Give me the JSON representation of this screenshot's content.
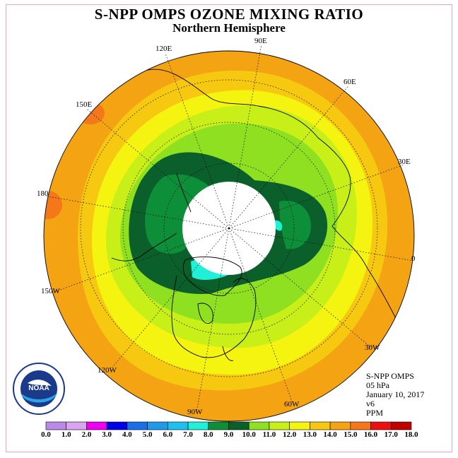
{
  "title": "S-NPP OMPS OZONE MIXING RATIO",
  "subtitle": "Northern Hemisphere",
  "longitude_labels": [
    "90E",
    "60E",
    "30E",
    "0",
    "30W",
    "60W",
    "90W",
    "120W",
    "150W",
    "180",
    "150E",
    "120E"
  ],
  "info": {
    "instrument": "S-NPP OMPS",
    "level": "05 hPa",
    "date": "January 10, 2017",
    "version": "v6",
    "units": "PPM"
  },
  "colorbar": {
    "ticks": [
      "0.0",
      "1.0",
      "2.0",
      "3.0",
      "4.0",
      "5.0",
      "6.0",
      "7.0",
      "8.0",
      "9.0",
      "10.0",
      "11.0",
      "12.0",
      "13.0",
      "14.0",
      "15.0",
      "16.0",
      "17.0",
      "18.0"
    ],
    "colors": [
      "#b98ae8",
      "#d9a4f0",
      "#f000f0",
      "#0000e8",
      "#1a6ee6",
      "#1e9ae8",
      "#1ec0f0",
      "#20f0d8",
      "#0d8f3a",
      "#0a5f2a",
      "#8fe020",
      "#c8f018",
      "#f4f410",
      "#f6c810",
      "#f4a412",
      "#f4781a",
      "#ee1010",
      "#c00000",
      "#8b5a3a"
    ]
  },
  "logo": {
    "text": "NOAA",
    "icon": "noaa-logo-icon"
  },
  "field_colors": {
    "outer": "#f4a412",
    "ring_14": "#f6c810",
    "ring_13": "#f4f410",
    "ring_12": "#c8f018",
    "ring_11": "#8fe020",
    "band_10": "#0a5f2a",
    "band_9": "#0d8f3a",
    "hot_16": "#f4781a",
    "cyan_8": "#20f0d8",
    "pole_cap": "#ffffff"
  }
}
